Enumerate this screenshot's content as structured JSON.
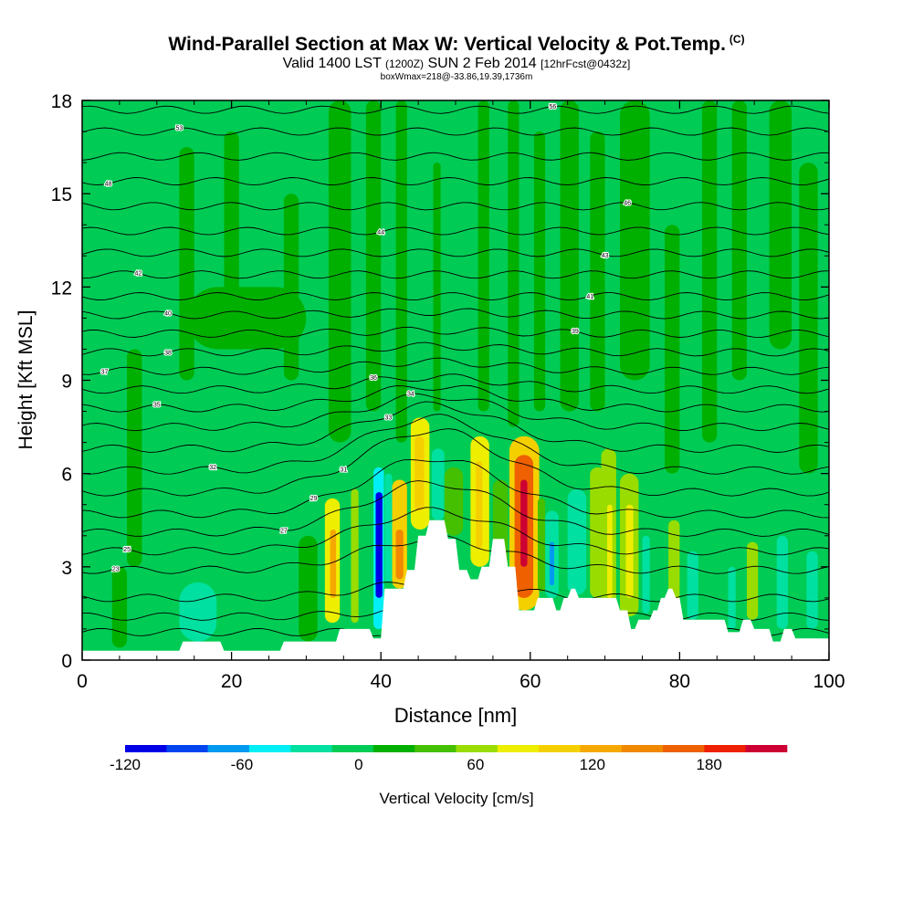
{
  "title": {
    "main": "Wind-Parallel Section at Max W: Vertical Velocity & Pot.Temp.",
    "copyright": "(C)",
    "valid_prefix": "Valid 1400 LST",
    "valid_utc": "(1200Z)",
    "valid_date": "SUN 2 Feb 2014",
    "forecast": "[12hrFcst@0432z]",
    "box_info": "boxWmax=218@-33.86,19.39,1736m"
  },
  "chart_data": {
    "type": "heatmap",
    "xlabel": "Distance [nm]",
    "ylabel": "Height [Kft MSL]",
    "xlim": [
      0,
      100
    ],
    "ylim": [
      0,
      18
    ],
    "x_ticks": [
      0,
      20,
      40,
      60,
      80,
      100
    ],
    "y_ticks": [
      0,
      3,
      6,
      9,
      12,
      15,
      18
    ],
    "colorbar": {
      "label": "Vertical Velocity [cm/s]",
      "min": -120,
      "max": 220,
      "step": 20,
      "tick_labels": [
        "-120",
        "-60",
        "0",
        "60",
        "120",
        "180"
      ],
      "tick_values": [
        -120,
        -60,
        0,
        60,
        120,
        180
      ],
      "colors": [
        "#0000e6",
        "#0044f0",
        "#0099f0",
        "#00eef5",
        "#00e0a0",
        "#00cc55",
        "#00b000",
        "#44c000",
        "#99dd00",
        "#eeee00",
        "#f5d000",
        "#f5a800",
        "#f08800",
        "#ee6000",
        "#ee2000",
        "#cc0033"
      ]
    },
    "max_w_cm_s": 218,
    "terrain_kft": [
      [
        0,
        0.3
      ],
      [
        13,
        0.3
      ],
      [
        13.5,
        0.6
      ],
      [
        18.5,
        0.6
      ],
      [
        19,
        0.3
      ],
      [
        26.5,
        0.3
      ],
      [
        27,
        0.6
      ],
      [
        34,
        0.6
      ],
      [
        34.5,
        1.0
      ],
      [
        38.5,
        1.0
      ],
      [
        39,
        0.7
      ],
      [
        40,
        0.7
      ],
      [
        40.5,
        2.3
      ],
      [
        43,
        2.3
      ],
      [
        43.5,
        2.9
      ],
      [
        44.5,
        2.9
      ],
      [
        45,
        4.0
      ],
      [
        46,
        4.0
      ],
      [
        46.5,
        4.5
      ],
      [
        48.5,
        4.5
      ],
      [
        49,
        3.9
      ],
      [
        50,
        3.9
      ],
      [
        50.5,
        2.9
      ],
      [
        51.5,
        2.9
      ],
      [
        52,
        2.6
      ],
      [
        53,
        2.6
      ],
      [
        53.5,
        3.0
      ],
      [
        54.5,
        3.0
      ],
      [
        55,
        3.9
      ],
      [
        56.5,
        3.9
      ],
      [
        57,
        3.0
      ],
      [
        58,
        3.0
      ],
      [
        58.5,
        1.6
      ],
      [
        60.5,
        1.6
      ],
      [
        61,
        2.0
      ],
      [
        63,
        2.0
      ],
      [
        63.5,
        1.6
      ],
      [
        64,
        1.6
      ],
      [
        64.5,
        2.0
      ],
      [
        65,
        2.0
      ],
      [
        65.5,
        2.3
      ],
      [
        66,
        2.3
      ],
      [
        66.5,
        2.0
      ],
      [
        71.5,
        2.0
      ],
      [
        72,
        1.6
      ],
      [
        73,
        1.6
      ],
      [
        73.5,
        1.0
      ],
      [
        74,
        1.0
      ],
      [
        74.5,
        1.3
      ],
      [
        76,
        1.3
      ],
      [
        76.5,
        1.6
      ],
      [
        77,
        1.6
      ],
      [
        77.5,
        2.0
      ],
      [
        78,
        2.0
      ],
      [
        78.5,
        2.3
      ],
      [
        79,
        2.3
      ],
      [
        79.5,
        2.0
      ],
      [
        80,
        2.0
      ],
      [
        80.5,
        1.3
      ],
      [
        86,
        1.3
      ],
      [
        86.5,
        0.9
      ],
      [
        88,
        0.9
      ],
      [
        88.5,
        1.3
      ],
      [
        89.5,
        1.3
      ],
      [
        90,
        1.0
      ],
      [
        92,
        1.0
      ],
      [
        92.5,
        0.6
      ],
      [
        93.5,
        0.6
      ],
      [
        94,
        1.0
      ],
      [
        95,
        1.0
      ],
      [
        95.5,
        0.7
      ],
      [
        100,
        0.7
      ]
    ],
    "w_cells": [
      {
        "x": [
          32.5,
          34.5
        ],
        "y": [
          1.2,
          5.2
        ],
        "w": 70
      },
      {
        "x": [
          33.2,
          34.0
        ],
        "y": [
          2.0,
          4.2
        ],
        "w": 100
      },
      {
        "x": [
          36.0,
          37.0
        ],
        "y": [
          1.2,
          5.5
        ],
        "w": 40
      },
      {
        "x": [
          39.0,
          40.4
        ],
        "y": [
          1.0,
          6.2
        ],
        "w": -60
      },
      {
        "x": [
          39.3,
          40.2
        ],
        "y": [
          2.0,
          5.4
        ],
        "w": -120
      },
      {
        "x": [
          40.5,
          41.5
        ],
        "y": [
          2.5,
          6.0
        ],
        "w": -40
      },
      {
        "x": [
          41.5,
          43.5
        ],
        "y": [
          2.3,
          5.8
        ],
        "w": 80
      },
      {
        "x": [
          42.0,
          43.0
        ],
        "y": [
          2.6,
          4.2
        ],
        "w": 130
      },
      {
        "x": [
          44.0,
          46.5
        ],
        "y": [
          4.2,
          7.8
        ],
        "w": 60
      },
      {
        "x": [
          44.5,
          45.8
        ],
        "y": [
          4.8,
          7.2
        ],
        "w": 90
      },
      {
        "x": [
          46.8,
          48.5
        ],
        "y": [
          4.5,
          6.8
        ],
        "w": -40
      },
      {
        "x": [
          48.5,
          51.0
        ],
        "y": [
          4.0,
          6.2
        ],
        "w": 30
      },
      {
        "x": [
          52.0,
          54.5
        ],
        "y": [
          3.0,
          7.2
        ],
        "w": 60
      },
      {
        "x": [
          52.7,
          53.6
        ],
        "y": [
          3.6,
          6.4
        ],
        "w": 90
      },
      {
        "x": [
          55.0,
          57.0
        ],
        "y": [
          2.0,
          5.8
        ],
        "w": 30
      },
      {
        "x": [
          57.2,
          61.2
        ],
        "y": [
          1.6,
          7.2
        ],
        "w": 80
      },
      {
        "x": [
          57.9,
          60.4
        ],
        "y": [
          2.0,
          6.6
        ],
        "w": 140
      },
      {
        "x": [
          58.7,
          59.6
        ],
        "y": [
          3.0,
          5.8
        ],
        "w": 180
      },
      {
        "x": [
          58.9,
          59.4
        ],
        "y": [
          3.6,
          5.2
        ],
        "w": 215
      },
      {
        "x": [
          61.0,
          62.0
        ],
        "y": [
          2.2,
          5.2
        ],
        "w": 30
      },
      {
        "x": [
          62.0,
          63.8
        ],
        "y": [
          2.0,
          4.8
        ],
        "w": -40
      },
      {
        "x": [
          62.6,
          63.2
        ],
        "y": [
          2.4,
          3.8
        ],
        "w": -70
      },
      {
        "x": [
          65.0,
          67.5
        ],
        "y": [
          2.1,
          5.5
        ],
        "w": -30
      },
      {
        "x": [
          68.0,
          70.0
        ],
        "y": [
          2.0,
          6.2
        ],
        "w": 40
      },
      {
        "x": [
          69.5,
          71.5
        ],
        "y": [
          1.6,
          6.8
        ],
        "w": 50
      },
      {
        "x": [
          70.3,
          71.0
        ],
        "y": [
          2.0,
          5.0
        ],
        "w": 70
      },
      {
        "x": [
          72.0,
          74.5
        ],
        "y": [
          1.4,
          6.0
        ],
        "w": 50
      },
      {
        "x": [
          72.8,
          73.8
        ],
        "y": [
          2.0,
          5.0
        ],
        "w": 70
      },
      {
        "x": [
          75.0,
          76.0
        ],
        "y": [
          1.5,
          4.0
        ],
        "w": -30
      },
      {
        "x": [
          78.5,
          80.0
        ],
        "y": [
          1.3,
          4.5
        ],
        "w": 40
      },
      {
        "x": [
          81.0,
          82.5
        ],
        "y": [
          1.3,
          3.5
        ],
        "w": -30
      },
      {
        "x": [
          86.5,
          87.5
        ],
        "y": [
          1.0,
          3.0
        ],
        "w": -30
      },
      {
        "x": [
          89.0,
          90.5
        ],
        "y": [
          1.3,
          3.8
        ],
        "w": 40
      },
      {
        "x": [
          93.0,
          94.5
        ],
        "y": [
          1.0,
          4.0
        ],
        "w": -30
      },
      {
        "x": [
          97.0,
          98.5
        ],
        "y": [
          1.0,
          3.5
        ],
        "w": -30
      },
      {
        "x": [
          4.0,
          6.0
        ],
        "y": [
          0.4,
          3.0
        ],
        "w": 10
      },
      {
        "x": [
          8.0,
          9.0
        ],
        "y": [
          0.4,
          2.8
        ],
        "w": -10
      },
      {
        "x": [
          13.0,
          18.0
        ],
        "y": [
          0.6,
          2.5
        ],
        "w": -30
      },
      {
        "x": [
          19.5,
          23.5
        ],
        "y": [
          0.4,
          2.8
        ],
        "w": -20
      },
      {
        "x": [
          24.5,
          27.5
        ],
        "y": [
          0.4,
          3.0
        ],
        "w": -10
      },
      {
        "x": [
          29.0,
          31.5
        ],
        "y": [
          0.6,
          4.0
        ],
        "w": 10
      },
      {
        "x": [
          6.0,
          8.0
        ],
        "y": [
          3.0,
          10.0
        ],
        "w": 10
      },
      {
        "x": [
          13.0,
          15.0
        ],
        "y": [
          9.0,
          16.5
        ],
        "w": 10
      },
      {
        "x": [
          14.0,
          30.0
        ],
        "y": [
          10.0,
          12.0
        ],
        "w": 10
      },
      {
        "x": [
          19.0,
          21.0
        ],
        "y": [
          10.0,
          17.0
        ],
        "w": 10
      },
      {
        "x": [
          27.0,
          29.0
        ],
        "y": [
          9.0,
          15.0
        ],
        "w": 10
      },
      {
        "x": [
          33.0,
          36.0
        ],
        "y": [
          7.0,
          18.0
        ],
        "w": 10
      },
      {
        "x": [
          38.0,
          40.0
        ],
        "y": [
          8.0,
          18.0
        ],
        "w": 10
      },
      {
        "x": [
          42.0,
          43.5
        ],
        "y": [
          7.0,
          18.0
        ],
        "w": 10
      },
      {
        "x": [
          45.0,
          46.0
        ],
        "y": [
          9.0,
          16.0
        ],
        "w": -20
      },
      {
        "x": [
          47.0,
          48.0
        ],
        "y": [
          8.0,
          16.0
        ],
        "w": 10
      },
      {
        "x": [
          53.0,
          54.5
        ],
        "y": [
          8.0,
          18.0
        ],
        "w": 10
      },
      {
        "x": [
          57.0,
          58.5
        ],
        "y": [
          7.5,
          18.0
        ],
        "w": 10
      },
      {
        "x": [
          60.5,
          62.0
        ],
        "y": [
          8.0,
          17.0
        ],
        "w": 10
      },
      {
        "x": [
          64.0,
          66.5
        ],
        "y": [
          8.0,
          18.0
        ],
        "w": 10
      },
      {
        "x": [
          68.0,
          70.0
        ],
        "y": [
          8.0,
          17.0
        ],
        "w": 10
      },
      {
        "x": [
          72.0,
          76.0
        ],
        "y": [
          9.0,
          18.0
        ],
        "w": 10
      },
      {
        "x": [
          78.0,
          80.0
        ],
        "y": [
          6.0,
          14.0
        ],
        "w": 10
      },
      {
        "x": [
          83.0,
          85.0
        ],
        "y": [
          7.0,
          18.0
        ],
        "w": 10
      },
      {
        "x": [
          87.0,
          89.0
        ],
        "y": [
          9.0,
          18.0
        ],
        "w": 10
      },
      {
        "x": [
          92.0,
          95.0
        ],
        "y": [
          10.0,
          18.0
        ],
        "w": 10
      },
      {
        "x": [
          96.0,
          98.5
        ],
        "y": [
          6.0,
          16.0
        ],
        "w": 10
      }
    ],
    "theta_lines": [
      {
        "y0": 0.9,
        "bump": 0.0,
        "label": "",
        "label_x": 2
      },
      {
        "y0": 1.4,
        "bump": 0.2,
        "label": "",
        "label_x": 2
      },
      {
        "y0": 2.0,
        "bump": 0.5,
        "label": "",
        "label_x": 2
      },
      {
        "y0": 2.9,
        "bump": 1.0,
        "label": "23",
        "label_x": 4.5
      },
      {
        "y0": 3.5,
        "bump": 1.3,
        "label": "25",
        "label_x": 6
      },
      {
        "y0": 4.1,
        "bump": 1.6,
        "label": "27",
        "label_x": 27
      },
      {
        "y0": 4.7,
        "bump": 1.8,
        "label": "29",
        "label_x": 31
      },
      {
        "y0": 5.4,
        "bump": 2.0,
        "label": "31",
        "label_x": 35
      },
      {
        "y0": 6.1,
        "bump": 1.7,
        "label": "32",
        "label_x": 17.5
      },
      {
        "y0": 6.8,
        "bump": 1.4,
        "label": "33",
        "label_x": 41
      },
      {
        "y0": 7.5,
        "bump": 1.0,
        "label": "34",
        "label_x": 44
      },
      {
        "y0": 8.1,
        "bump": 0.7,
        "label": "35",
        "label_x": 10
      },
      {
        "y0": 8.7,
        "bump": 0.4,
        "label": "36",
        "label_x": 39
      },
      {
        "y0": 9.3,
        "bump": 0.3,
        "label": "37",
        "label_x": 3
      },
      {
        "y0": 9.9,
        "bump": 0.2,
        "label": "38",
        "label_x": 11.5
      },
      {
        "y0": 10.5,
        "bump": 0.1,
        "label": "39",
        "label_x": 66
      },
      {
        "y0": 11.1,
        "bump": 0.1,
        "label": "40",
        "label_x": 11.5
      },
      {
        "y0": 11.7,
        "bump": 0.0,
        "label": "41",
        "label_x": 68
      },
      {
        "y0": 12.4,
        "bump": 0.0,
        "label": "42",
        "label_x": 7.5
      },
      {
        "y0": 13.1,
        "bump": 0.0,
        "label": "43",
        "label_x": 70
      },
      {
        "y0": 13.8,
        "bump": 0.0,
        "label": "44",
        "label_x": 40
      },
      {
        "y0": 14.6,
        "bump": 0.0,
        "label": "46",
        "label_x": 73
      },
      {
        "y0": 15.4,
        "bump": 0.0,
        "label": "48",
        "label_x": 3.5
      },
      {
        "y0": 16.2,
        "bump": 0.0,
        "label": "",
        "label_x": 2
      },
      {
        "y0": 17.0,
        "bump": 0.0,
        "label": "53",
        "label_x": 13
      },
      {
        "y0": 17.7,
        "bump": 0.0,
        "label": "56",
        "label_x": 63
      }
    ]
  }
}
